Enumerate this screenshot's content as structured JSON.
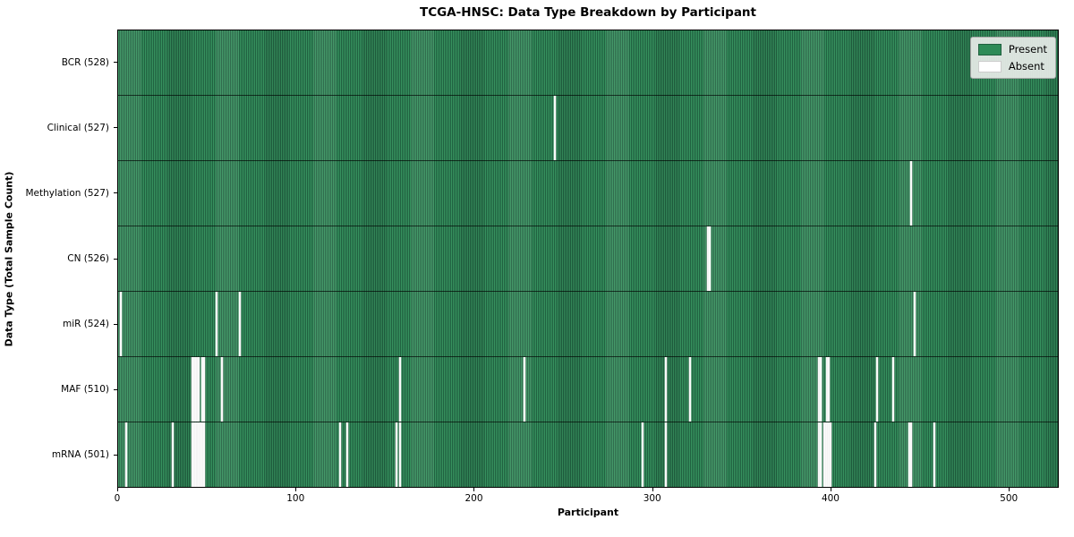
{
  "title": "TCGA-HNSC: Data Type Breakdown by Participant",
  "xlabel": "Participant",
  "ylabel": "Data Type (Total Sample Count)",
  "legend": {
    "present_label": "Present",
    "absent_label": "Absent"
  },
  "colors": {
    "present": "#2e8b57",
    "present_stripe_dark": "#206040",
    "present_stripe_light": "#37935f",
    "absent": "#ffffff",
    "legend_bg": "#e8ebe8"
  },
  "chart_data": {
    "type": "heatmap",
    "title": "TCGA-HNSC: Data Type Breakdown by Participant",
    "xlabel": "Participant",
    "ylabel": "Data Type (Total Sample Count)",
    "legend_entries": [
      "Present",
      "Absent"
    ],
    "legend_position": "upper right",
    "grid": false,
    "n_participants": 528,
    "x_ticks": [
      0,
      100,
      200,
      300,
      400,
      500
    ],
    "value_encoding": {
      "present": "#2e8b57",
      "absent": "#ffffff"
    },
    "rows": [
      {
        "label": "BCR (528)",
        "data_type": "BCR",
        "total": 528,
        "absent_participants": []
      },
      {
        "label": "Clinical (527)",
        "data_type": "Clinical",
        "total": 527,
        "absent_participants": [
          245
        ]
      },
      {
        "label": "Methylation (527)",
        "data_type": "Methylation",
        "total": 527,
        "absent_participants": [
          445
        ]
      },
      {
        "label": "CN (526)",
        "data_type": "CN",
        "total": 526,
        "absent_participants": [
          331,
          332
        ]
      },
      {
        "label": "miR (524)",
        "data_type": "miR",
        "total": 524,
        "absent_participants": [
          1,
          55,
          68,
          447
        ]
      },
      {
        "label": "MAF (510)",
        "data_type": "MAF",
        "total": 510,
        "absent_participants": [
          41,
          42,
          43,
          44,
          45,
          47,
          48,
          58,
          158,
          228,
          307,
          321,
          393,
          394,
          398,
          399,
          426,
          435
        ]
      },
      {
        "label": "mRNA (501)",
        "data_type": "mRNA",
        "total": 501,
        "absent_participants": [
          4,
          30,
          41,
          42,
          43,
          44,
          45,
          46,
          47,
          48,
          124,
          128,
          156,
          158,
          294,
          307,
          393,
          394,
          396,
          397,
          398,
          399,
          400,
          425,
          444,
          445,
          458
        ]
      }
    ]
  }
}
